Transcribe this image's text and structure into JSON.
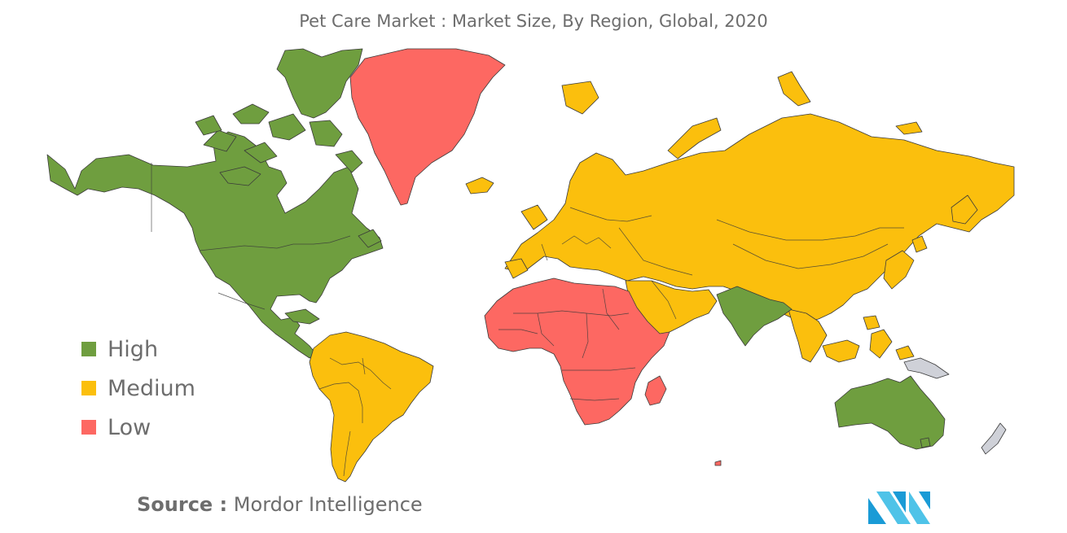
{
  "title": "Pet Care Market : Market Size, By Region, Global, 2020",
  "colors": {
    "high": "#6f9e3f",
    "medium": "#fbbf0d",
    "low": "#fd6862",
    "no_data": "#cfd1d8",
    "brand": "#1a9bd6"
  },
  "legend": [
    {
      "label": "High",
      "color": "#6f9e3f"
    },
    {
      "label": "Medium",
      "color": "#fbbf0d"
    },
    {
      "label": "Low",
      "color": "#fd6862"
    }
  ],
  "source": {
    "prefix": "Source :",
    "name": "Mordor Intelligence"
  },
  "regions": {
    "north_america": "High",
    "india": "High",
    "australia": "High",
    "south_america": "Medium",
    "europe": "Medium",
    "russia_asia": "Medium",
    "middle_east": "Medium",
    "southeast_asia": "Medium",
    "greenland": "Low",
    "africa": "Low",
    "madagascar": "Low",
    "new_guinea": "No data",
    "new_zealand": "No data"
  },
  "logo_icon": "mordor-intelligence-logo"
}
